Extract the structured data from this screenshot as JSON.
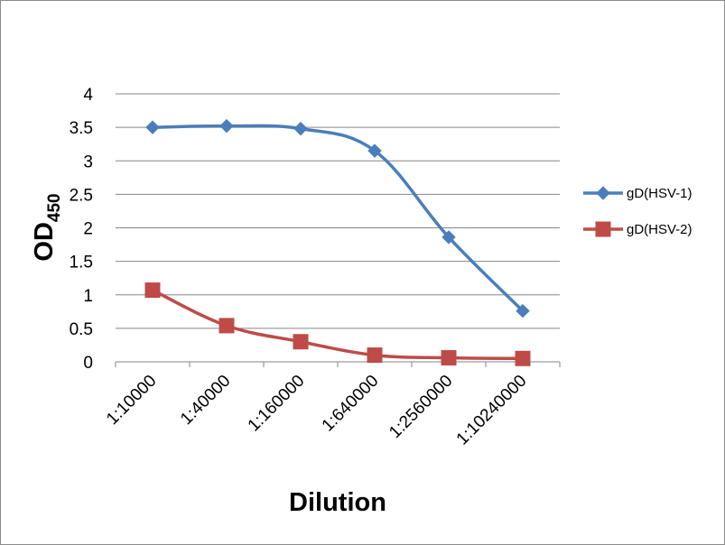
{
  "chart_data": {
    "type": "line",
    "categories": [
      "1:10000",
      "1:40000",
      "1:160000",
      "1:640000",
      "1:2560000",
      "1:10240000"
    ],
    "series": [
      {
        "name": "gD(HSV-1)",
        "values": [
          3.5,
          3.52,
          3.48,
          3.15,
          1.86,
          0.76
        ],
        "color": "#4a7ebb",
        "marker": "diamond"
      },
      {
        "name": "gD(HSV-2)",
        "values": [
          1.07,
          0.54,
          0.3,
          0.1,
          0.06,
          0.05
        ],
        "color": "#be4b48",
        "marker": "square"
      }
    ],
    "yticks": [
      "0",
      "0.5",
      "1",
      "1.5",
      "2",
      "2.5",
      "3",
      "3.5",
      "4"
    ],
    "ylim": [
      0,
      4
    ],
    "xlabel": "Dilution",
    "ylabel": "OD",
    "ylabel_subscript": "450",
    "grid": true,
    "legend": "right"
  }
}
